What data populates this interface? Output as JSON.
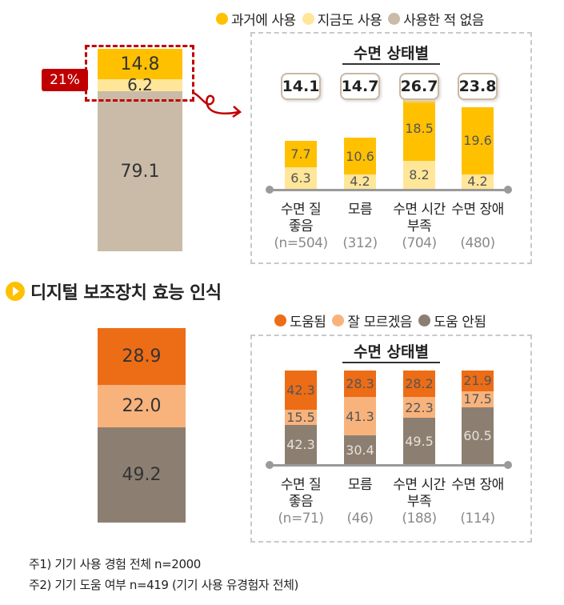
{
  "colors": {
    "past": "#ffc000",
    "current": "#ffe699",
    "never": "#c9bba8",
    "helped": "#ed6c16",
    "unsure": "#f8b37c",
    "not_helped": "#8c7f72",
    "highlight": "#c00000"
  },
  "usage_legend": {
    "past": "과거에 사용",
    "current": "지금도 사용",
    "never": "사용한 적 없음"
  },
  "usage_overall": {
    "past": "14.8",
    "current": "6.2",
    "never": "79.1",
    "callout": "21%"
  },
  "usage_panel": {
    "title": "수면 상태별",
    "groups": [
      {
        "total": "14.1",
        "past": "7.7",
        "current": "6.3",
        "label1": "수면 질",
        "label2": "좋음",
        "n": "(n=504)"
      },
      {
        "total": "14.7",
        "past": "10.6",
        "current": "4.2",
        "label1": "모름",
        "label2": "",
        "n": "(312)"
      },
      {
        "total": "26.7",
        "past": "18.5",
        "current": "8.2",
        "label1": "수면 시간",
        "label2": "부족",
        "n": "(704)"
      },
      {
        "total": "23.8",
        "past": "19.6",
        "current": "4.2",
        "label1": "수면 장애",
        "label2": "",
        "n": "(480)"
      }
    ]
  },
  "efficacy_heading": "디지털 보조장치 효능 인식",
  "efficacy_legend": {
    "helped": "도움됨",
    "unsure": "잘 모르겠음",
    "not_helped": "도움 안됨"
  },
  "efficacy_overall": {
    "helped": "28.9",
    "unsure": "22.0",
    "not_helped": "49.2"
  },
  "efficacy_panel": {
    "title": "수면 상태별",
    "groups": [
      {
        "helped": "42.3",
        "unsure": "15.5",
        "not_helped": "42.3",
        "label1": "수면 질",
        "label2": "좋음",
        "n": "(n=71)"
      },
      {
        "helped": "28.3",
        "unsure": "41.3",
        "not_helped": "30.4",
        "label1": "모름",
        "label2": "",
        "n": "(46)"
      },
      {
        "helped": "28.2",
        "unsure": "22.3",
        "not_helped": "49.5",
        "label1": "수면 시간",
        "label2": "부족",
        "n": "(188)"
      },
      {
        "helped": "21.9",
        "unsure": "17.5",
        "not_helped": "60.5",
        "label1": "수면 장애",
        "label2": "",
        "n": "(114)"
      }
    ]
  },
  "notes": [
    "주1) 기기 사용 경험 전체 n=2000",
    "주2) 기기 도움 여부 n=419 (기기 사용 유경험자 전체)"
  ],
  "chart_data": [
    {
      "type": "bar",
      "title": "",
      "categories": [
        ""
      ],
      "series": [
        {
          "name": "과거에 사용",
          "values": [
            14.8
          ]
        },
        {
          "name": "지금도 사용",
          "values": [
            6.2
          ]
        },
        {
          "name": "사용한 적 없음",
          "values": [
            79.1
          ]
        }
      ]
    },
    {
      "type": "bar",
      "title": "수면 상태별",
      "categories": [
        "수면 질 좋음 (n=504)",
        "모름 (312)",
        "수면 시간 부족 (704)",
        "수면 장애 (480)"
      ],
      "series": [
        {
          "name": "과거에 사용",
          "values": [
            7.7,
            10.6,
            18.5,
            19.6
          ]
        },
        {
          "name": "지금도 사용",
          "values": [
            6.3,
            4.2,
            8.2,
            4.2
          ]
        }
      ],
      "totals": [
        14.1,
        14.7,
        26.7,
        23.8
      ]
    },
    {
      "type": "bar",
      "title": "",
      "categories": [
        ""
      ],
      "series": [
        {
          "name": "도움됨",
          "values": [
            28.9
          ]
        },
        {
          "name": "잘 모르겠음",
          "values": [
            22.0
          ]
        },
        {
          "name": "도움 안됨",
          "values": [
            49.2
          ]
        }
      ]
    },
    {
      "type": "bar",
      "title": "수면 상태별",
      "categories": [
        "수면 질 좋음 (n=71)",
        "모름 (46)",
        "수면 시간 부족 (188)",
        "수면 장애 (114)"
      ],
      "series": [
        {
          "name": "도움됨",
          "values": [
            42.3,
            28.3,
            28.2,
            21.9
          ]
        },
        {
          "name": "잘 모르겠음",
          "values": [
            15.5,
            41.3,
            22.3,
            17.5
          ]
        },
        {
          "name": "도움 안됨",
          "values": [
            42.3,
            30.4,
            49.5,
            60.5
          ]
        }
      ]
    }
  ]
}
